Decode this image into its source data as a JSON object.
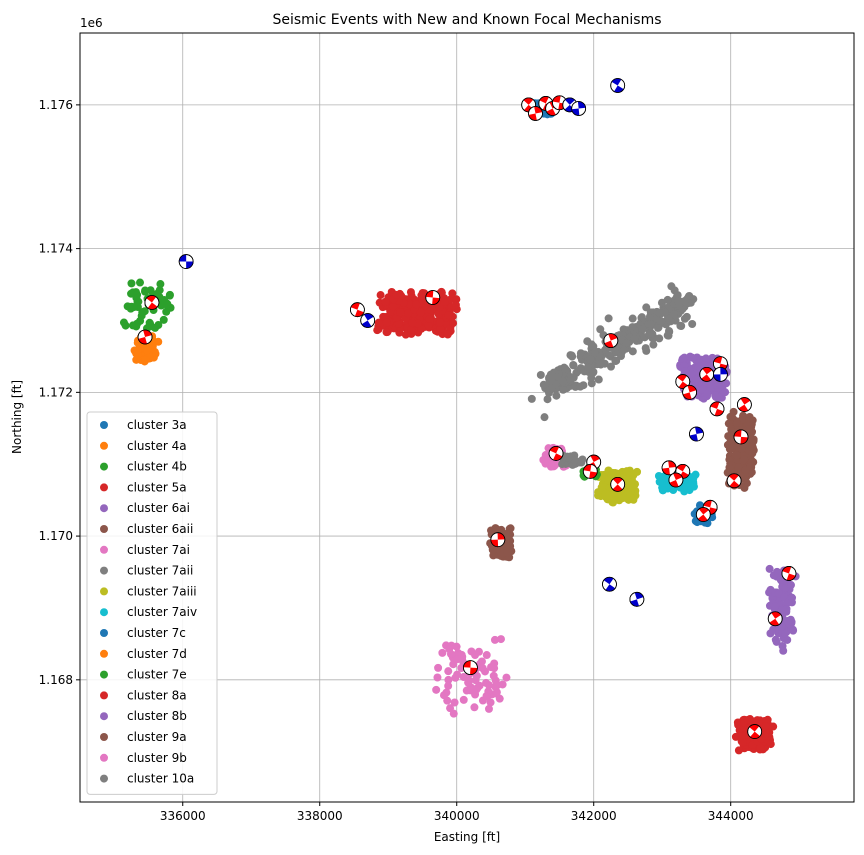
{
  "chart_data": {
    "type": "scatter",
    "title": "Seismic Events with New and Known Focal Mechanisms",
    "xlabel": "Easting [ft]",
    "ylabel": "Northing [ft]",
    "y_offset_label": "1e6",
    "xlim": [
      334500,
      345800
    ],
    "ylim": [
      1166300,
      1177000
    ],
    "x_ticks": [
      336000,
      338000,
      340000,
      342000,
      344000
    ],
    "x_tick_labels": [
      "336000",
      "338000",
      "340000",
      "342000",
      "344000"
    ],
    "y_ticks": [
      1168000,
      1170000,
      1172000,
      1174000,
      1176000
    ],
    "y_tick_labels": [
      "1.168",
      "1.170",
      "1.172",
      "1.174",
      "1.176"
    ],
    "grid": true,
    "legend_position": "lower-left",
    "series": [
      {
        "name": "cluster 3a",
        "color": "#1f77b4",
        "center": [
          341250,
          1175950
        ],
        "spread": [
          180,
          90
        ],
        "n": 90
      },
      {
        "name": "cluster 4a",
        "color": "#ff7f0e",
        "center": [
          335450,
          1172600
        ],
        "spread": [
          200,
          220
        ],
        "n": 60
      },
      {
        "name": "cluster 4b",
        "color": "#2ca02c",
        "center": [
          335500,
          1173200
        ],
        "spread": [
          400,
          400
        ],
        "n": 55
      },
      {
        "name": "cluster 5a",
        "color": "#d62728",
        "center": [
          339400,
          1173100
        ],
        "spread": [
          650,
          330
        ],
        "n": 260
      },
      {
        "name": "cluster 6ai",
        "color": "#9467bd",
        "center": [
          343600,
          1172200
        ],
        "spread": [
          380,
          320
        ],
        "n": 220
      },
      {
        "name": "cluster 6aii",
        "color": "#8c564b",
        "center": [
          344150,
          1171200
        ],
        "spread": [
          220,
          580
        ],
        "n": 220
      },
      {
        "name": "cluster 7ai",
        "color": "#e377c2",
        "center": [
          341450,
          1171100
        ],
        "spread": [
          230,
          170
        ],
        "n": 40
      },
      {
        "name": "cluster 7aii",
        "color": "#7f7f7f",
        "center": [
          342350,
          1172650
        ],
        "spread": [
          1000,
          600
        ],
        "n": 320,
        "diagonal": true
      },
      {
        "name": "cluster 7aiii",
        "color": "#bcbd22",
        "center": [
          342350,
          1170700
        ],
        "spread": [
          300,
          250
        ],
        "n": 180
      },
      {
        "name": "cluster 7aiv",
        "color": "#17becf",
        "center": [
          343250,
          1170750
        ],
        "spread": [
          320,
          150
        ],
        "n": 70
      },
      {
        "name": "cluster 7c",
        "color": "#1f77b4",
        "center": [
          343600,
          1170300
        ],
        "spread": [
          150,
          160
        ],
        "n": 40
      },
      {
        "name": "cluster 7d",
        "color": "#ff7f0e",
        "center": [
          341800,
          1175950
        ],
        "spread": [
          60,
          60
        ],
        "n": 4
      },
      {
        "name": "cluster 7e",
        "color": "#2ca02c",
        "center": [
          341950,
          1170900
        ],
        "spread": [
          150,
          100
        ],
        "n": 20
      },
      {
        "name": "cluster 8a",
        "color": "#d62728",
        "center": [
          344350,
          1167250
        ],
        "spread": [
          300,
          250
        ],
        "n": 180
      },
      {
        "name": "cluster 8b",
        "color": "#9467bd",
        "center": [
          344750,
          1169000
        ],
        "spread": [
          200,
          650
        ],
        "n": 90
      },
      {
        "name": "cluster 9a",
        "color": "#8c564b",
        "center": [
          340650,
          1169900
        ],
        "spread": [
          180,
          230
        ],
        "n": 70
      },
      {
        "name": "cluster 9b",
        "color": "#e377c2",
        "center": [
          340200,
          1168050
        ],
        "spread": [
          550,
          550
        ],
        "n": 80
      },
      {
        "name": "cluster 10a",
        "color": "#7f7f7f",
        "center": [
          341700,
          1171050
        ],
        "spread": [
          200,
          90
        ],
        "n": 25
      }
    ],
    "mechanisms": [
      {
        "x": 336050,
        "y": 1173820,
        "color": "#0000cc"
      },
      {
        "x": 335550,
        "y": 1173250,
        "color": "#ff0000"
      },
      {
        "x": 335450,
        "y": 1172770,
        "color": "#ff0000"
      },
      {
        "x": 338550,
        "y": 1173150,
        "color": "#ff0000"
      },
      {
        "x": 338700,
        "y": 1173000,
        "color": "#0000cc"
      },
      {
        "x": 339650,
        "y": 1173320,
        "color": "#ff0000"
      },
      {
        "x": 341050,
        "y": 1176000,
        "color": "#ff0000"
      },
      {
        "x": 341150,
        "y": 1175880,
        "color": "#ff0000"
      },
      {
        "x": 341300,
        "y": 1176020,
        "color": "#ff0000"
      },
      {
        "x": 341400,
        "y": 1175950,
        "color": "#ff0000"
      },
      {
        "x": 341500,
        "y": 1176030,
        "color": "#ff0000"
      },
      {
        "x": 341650,
        "y": 1176000,
        "color": "#0000cc"
      },
      {
        "x": 341780,
        "y": 1175950,
        "color": "#0000cc"
      },
      {
        "x": 342350,
        "y": 1176270,
        "color": "#0000cc"
      },
      {
        "x": 342250,
        "y": 1172720,
        "color": "#ff0000"
      },
      {
        "x": 343850,
        "y": 1172400,
        "color": "#ff0000"
      },
      {
        "x": 343650,
        "y": 1172250,
        "color": "#ff0000"
      },
      {
        "x": 343850,
        "y": 1172250,
        "color": "#0000cc"
      },
      {
        "x": 343300,
        "y": 1172150,
        "color": "#ff0000"
      },
      {
        "x": 343400,
        "y": 1172000,
        "color": "#ff0000"
      },
      {
        "x": 343800,
        "y": 1171770,
        "color": "#ff0000"
      },
      {
        "x": 344200,
        "y": 1171830,
        "color": "#ff0000"
      },
      {
        "x": 344150,
        "y": 1171380,
        "color": "#ff0000"
      },
      {
        "x": 344050,
        "y": 1170770,
        "color": "#ff0000"
      },
      {
        "x": 343500,
        "y": 1171420,
        "color": "#0000cc"
      },
      {
        "x": 341450,
        "y": 1171150,
        "color": "#ff0000"
      },
      {
        "x": 342000,
        "y": 1171030,
        "color": "#ff0000"
      },
      {
        "x": 341950,
        "y": 1170900,
        "color": "#ff0000"
      },
      {
        "x": 342350,
        "y": 1170720,
        "color": "#ff0000"
      },
      {
        "x": 343100,
        "y": 1170950,
        "color": "#ff0000"
      },
      {
        "x": 343300,
        "y": 1170900,
        "color": "#ff0000"
      },
      {
        "x": 343200,
        "y": 1170780,
        "color": "#ff0000"
      },
      {
        "x": 343700,
        "y": 1170400,
        "color": "#ff0000"
      },
      {
        "x": 343600,
        "y": 1170300,
        "color": "#ff0000"
      },
      {
        "x": 340600,
        "y": 1169950,
        "color": "#ff0000"
      },
      {
        "x": 342230,
        "y": 1169330,
        "color": "#0000cc"
      },
      {
        "x": 342630,
        "y": 1169120,
        "color": "#0000cc"
      },
      {
        "x": 344850,
        "y": 1169480,
        "color": "#ff0000"
      },
      {
        "x": 344650,
        "y": 1168850,
        "color": "#ff0000"
      },
      {
        "x": 340200,
        "y": 1168170,
        "color": "#ff0000"
      },
      {
        "x": 344350,
        "y": 1167280,
        "color": "#ff0000"
      }
    ]
  }
}
